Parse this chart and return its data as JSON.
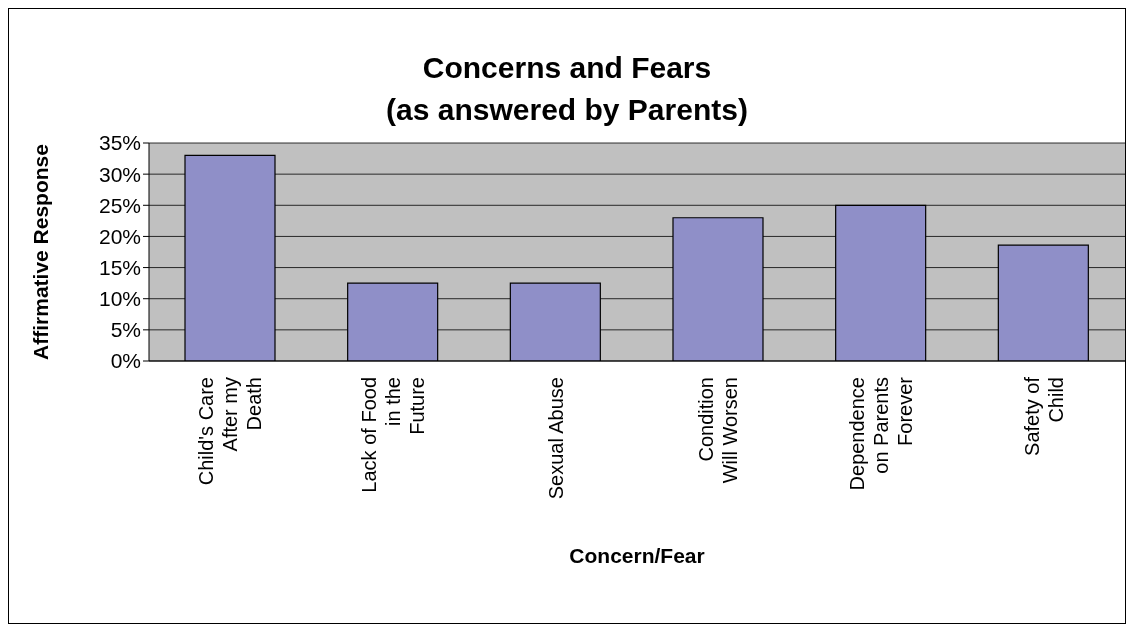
{
  "chart_data": {
    "type": "bar",
    "title": "Concerns and Fears\n(as answered by Parents)",
    "xlabel": "Concern/Fear",
    "ylabel": "Affirmative Response",
    "categories": [
      "Child's Care After my Death",
      "Lack of Food in the Future",
      "Sexual Abuse",
      "Condition Will Worsen",
      "Dependence on Parents Forever",
      "Safety of Child"
    ],
    "values": [
      33,
      12.5,
      12.5,
      23,
      25,
      18.6
    ],
    "color": "#8f8fc8",
    "ylim": [
      0,
      35
    ],
    "yticks": [
      {
        "value": 0,
        "label": "0%"
      },
      {
        "value": 5,
        "label": "5%"
      },
      {
        "value": 10,
        "label": "10%"
      },
      {
        "value": 15,
        "label": "15%"
      },
      {
        "value": 20,
        "label": "20%"
      },
      {
        "value": 25,
        "label": "25%"
      },
      {
        "value": 30,
        "label": "30%"
      },
      {
        "value": 35,
        "label": "35%"
      }
    ],
    "grid": "y"
  }
}
